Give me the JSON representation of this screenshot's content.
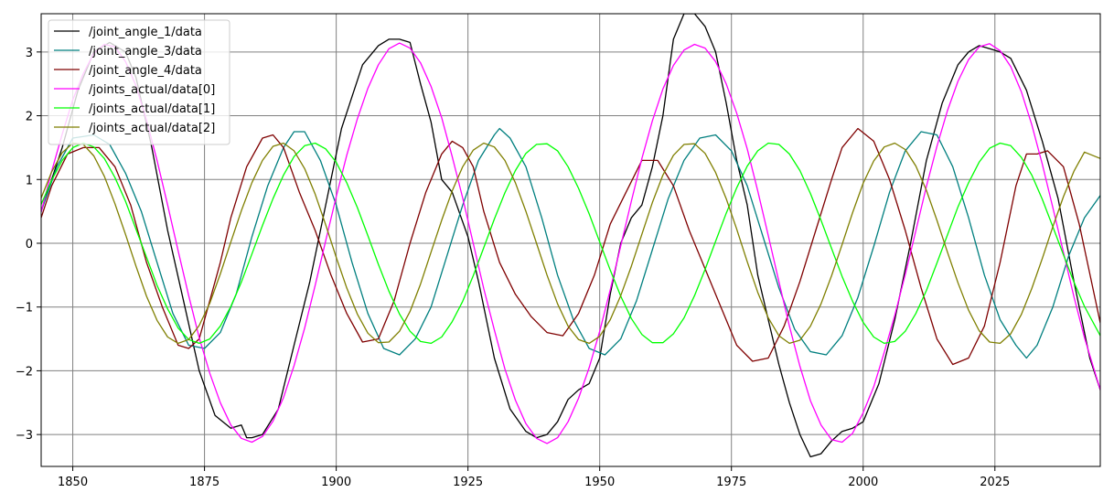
{
  "chart_data": {
    "type": "line",
    "title": "",
    "xlabel": "",
    "ylabel": "",
    "xlim": [
      1844,
      2045
    ],
    "ylim": [
      -3.5,
      3.6
    ],
    "grid": true,
    "legend_position": "top-left",
    "x_ticks": [
      1850,
      1875,
      1900,
      1925,
      1950,
      1975,
      2000,
      2025
    ],
    "x_tick_labels": [
      "1850",
      "1875",
      "1900",
      "1925",
      "1950",
      "1975",
      "2000",
      "2025"
    ],
    "y_ticks": [
      -3,
      -2,
      -1,
      0,
      1,
      2,
      3
    ],
    "y_tick_labels": [
      "−3",
      "−2",
      "−1",
      "0",
      "1",
      "2",
      "3"
    ],
    "series": [
      {
        "name": "/joint_angle_1/data",
        "color": "#000000",
        "x": [
          1844,
          1848,
          1851,
          1854,
          1857,
          1860,
          1862,
          1865,
          1868,
          1871,
          1874,
          1877,
          1880,
          1882,
          1883,
          1884,
          1886,
          1889,
          1892,
          1895,
          1898,
          1901,
          1903,
          1905,
          1908,
          1910,
          1912,
          1914,
          1916,
          1918,
          1920,
          1922,
          1925,
          1927,
          1930,
          1933,
          1936,
          1938,
          1940,
          1942,
          1944,
          1946,
          1948,
          1950,
          1952,
          1954,
          1956,
          1958,
          1960,
          1962,
          1964,
          1966,
          1968,
          1970,
          1972,
          1974,
          1976,
          1978,
          1980,
          1982,
          1984,
          1986,
          1988,
          1990,
          1992,
          1994,
          1996,
          1998,
          2000,
          2003,
          2006,
          2009,
          2012,
          2015,
          2018,
          2020,
          2022,
          2024,
          2026,
          2028,
          2031,
          2034,
          2037,
          2040,
          2043,
          2045
        ],
        "y": [
          0.5,
          1.5,
          2.4,
          3.0,
          3.15,
          3.0,
          2.6,
          1.5,
          0.2,
          -0.9,
          -2.0,
          -2.7,
          -2.9,
          -2.85,
          -3.05,
          -3.05,
          -3.0,
          -2.6,
          -1.6,
          -0.6,
          0.6,
          1.8,
          2.3,
          2.8,
          3.1,
          3.2,
          3.2,
          3.15,
          2.5,
          1.9,
          1.0,
          0.8,
          0.1,
          -0.6,
          -1.8,
          -2.6,
          -2.95,
          -3.05,
          -3.0,
          -2.8,
          -2.45,
          -2.3,
          -2.2,
          -1.8,
          -0.8,
          0.0,
          0.4,
          0.6,
          1.2,
          2.0,
          3.2,
          3.6,
          3.6,
          3.4,
          3.0,
          2.2,
          1.3,
          0.6,
          -0.5,
          -1.2,
          -1.9,
          -2.5,
          -3.0,
          -3.35,
          -3.3,
          -3.1,
          -2.95,
          -2.9,
          -2.8,
          -2.2,
          -1.2,
          0.0,
          1.3,
          2.2,
          2.8,
          3.0,
          3.1,
          3.05,
          3.0,
          2.9,
          2.4,
          1.6,
          0.7,
          -0.6,
          -1.8,
          -2.3
        ]
      },
      {
        "name": "/joint_angle_3/data",
        "color": "#007f7f",
        "x": [
          1844,
          1847,
          1850,
          1854,
          1857,
          1860,
          1863,
          1866,
          1869,
          1872,
          1875,
          1878,
          1881,
          1884,
          1887,
          1890,
          1892,
          1894,
          1897,
          1900,
          1903,
          1906,
          1909,
          1912,
          1915,
          1918,
          1921,
          1924,
          1927,
          1930,
          1931,
          1933,
          1936,
          1939,
          1942,
          1945,
          1948,
          1951,
          1954,
          1957,
          1960,
          1963,
          1966,
          1969,
          1972,
          1975,
          1978,
          1981,
          1984,
          1987,
          1990,
          1993,
          1996,
          1999,
          2002,
          2005,
          2008,
          2011,
          2014,
          2017,
          2020,
          2023,
          2026,
          2029,
          2031,
          2033,
          2036,
          2039,
          2042,
          2045
        ],
        "y": [
          0.5,
          1.2,
          1.65,
          1.7,
          1.55,
          1.1,
          0.5,
          -0.3,
          -1.1,
          -1.6,
          -1.65,
          -1.4,
          -0.8,
          0.1,
          0.9,
          1.5,
          1.75,
          1.75,
          1.3,
          0.6,
          -0.3,
          -1.1,
          -1.65,
          -1.75,
          -1.5,
          -1.0,
          -0.2,
          0.6,
          1.3,
          1.7,
          1.8,
          1.65,
          1.2,
          0.4,
          -0.5,
          -1.2,
          -1.65,
          -1.75,
          -1.5,
          -0.9,
          -0.1,
          0.7,
          1.3,
          1.65,
          1.7,
          1.45,
          0.9,
          0.1,
          -0.7,
          -1.35,
          -1.7,
          -1.75,
          -1.45,
          -0.85,
          -0.05,
          0.8,
          1.45,
          1.75,
          1.7,
          1.2,
          0.4,
          -0.5,
          -1.2,
          -1.6,
          -1.8,
          -1.6,
          -1.0,
          -0.2,
          0.4,
          0.75
        ]
      },
      {
        "name": "/joint_angle_4/data",
        "color": "#7f0000",
        "x": [
          1844,
          1846,
          1849,
          1852,
          1855,
          1858,
          1861,
          1864,
          1867,
          1870,
          1872,
          1874,
          1876,
          1878,
          1880,
          1883,
          1886,
          1888,
          1890,
          1893,
          1896,
          1899,
          1902,
          1905,
          1908,
          1911,
          1914,
          1917,
          1920,
          1922,
          1924,
          1926,
          1928,
          1931,
          1934,
          1937,
          1940,
          1943,
          1946,
          1949,
          1952,
          1955,
          1958,
          1961,
          1964,
          1967,
          1970,
          1973,
          1976,
          1979,
          1982,
          1985,
          1988,
          1991,
          1994,
          1996,
          1999,
          2002,
          2005,
          2008,
          2011,
          2014,
          2017,
          2020,
          2023,
          2026,
          2029,
          2031,
          2033,
          2035,
          2038,
          2041,
          2045
        ],
        "y": [
          0.4,
          0.9,
          1.4,
          1.5,
          1.5,
          1.2,
          0.6,
          -0.3,
          -1.0,
          -1.6,
          -1.65,
          -1.5,
          -0.9,
          -0.3,
          0.4,
          1.2,
          1.65,
          1.7,
          1.5,
          0.8,
          0.2,
          -0.5,
          -1.1,
          -1.55,
          -1.5,
          -0.9,
          0.0,
          0.8,
          1.4,
          1.6,
          1.5,
          1.2,
          0.5,
          -0.3,
          -0.8,
          -1.15,
          -1.4,
          -1.45,
          -1.1,
          -0.5,
          0.3,
          0.8,
          1.3,
          1.3,
          0.9,
          0.2,
          -0.4,
          -1.0,
          -1.6,
          -1.85,
          -1.8,
          -1.3,
          -0.6,
          0.2,
          1.0,
          1.5,
          1.8,
          1.6,
          1.0,
          0.2,
          -0.7,
          -1.5,
          -1.9,
          -1.8,
          -1.3,
          -0.3,
          0.9,
          1.4,
          1.4,
          1.45,
          1.2,
          0.3,
          -1.25
        ]
      },
      {
        "name": "/joints_actual/data[0]",
        "color": "#ff00ff",
        "x": [
          1844,
          1846,
          1848,
          1850,
          1852,
          1854,
          1856,
          1858,
          1860,
          1862,
          1864,
          1866,
          1868,
          1870,
          1872,
          1874,
          1876,
          1878,
          1880,
          1882,
          1884,
          1886,
          1888,
          1890,
          1892,
          1894,
          1896,
          1898,
          1900,
          1902,
          1904,
          1906,
          1908,
          1910,
          1912,
          1914,
          1916,
          1918,
          1920,
          1922,
          1924,
          1926,
          1928,
          1930,
          1932,
          1934,
          1936,
          1938,
          1940,
          1942,
          1944,
          1946,
          1948,
          1950,
          1952,
          1954,
          1956,
          1958,
          1960,
          1962,
          1964,
          1966,
          1968,
          1970,
          1972,
          1974,
          1976,
          1978,
          1980,
          1982,
          1984,
          1986,
          1988,
          1990,
          1992,
          1994,
          1996,
          1998,
          2000,
          2002,
          2004,
          2006,
          2008,
          2010,
          2012,
          2014,
          2016,
          2018,
          2020,
          2022,
          2024,
          2026,
          2028,
          2030,
          2032,
          2034,
          2036,
          2038,
          2040,
          2042,
          2045
        ],
        "y": [
          0.49,
          1.13,
          1.71,
          2.25,
          2.66,
          2.98,
          3.12,
          3.08,
          2.85,
          2.47,
          1.93,
          1.3,
          0.6,
          -0.12,
          -0.82,
          -1.48,
          -2.04,
          -2.5,
          -2.85,
          -3.06,
          -3.12,
          -3.03,
          -2.79,
          -2.42,
          -1.92,
          -1.33,
          -0.66,
          0.04,
          0.73,
          1.38,
          1.95,
          2.43,
          2.8,
          3.05,
          3.14,
          3.06,
          2.83,
          2.46,
          1.97,
          1.36,
          0.71,
          0.0,
          -0.71,
          -1.36,
          -1.97,
          -2.46,
          -2.83,
          -3.06,
          -3.14,
          -3.05,
          -2.8,
          -2.43,
          -1.95,
          -1.38,
          -0.73,
          -0.04,
          0.66,
          1.33,
          1.92,
          2.42,
          2.79,
          3.03,
          3.12,
          3.06,
          2.85,
          2.5,
          2.04,
          1.48,
          0.82,
          0.12,
          -0.6,
          -1.3,
          -1.93,
          -2.47,
          -2.85,
          -3.08,
          -3.12,
          -2.98,
          -2.66,
          -2.25,
          -1.71,
          -1.13,
          -0.49,
          0.2,
          0.89,
          1.52,
          2.08,
          2.54,
          2.88,
          3.08,
          3.13,
          3.02,
          2.77,
          2.38,
          1.86,
          1.24,
          0.56,
          -0.14,
          -0.84,
          -1.48,
          -2.3
        ]
      },
      {
        "name": "/joints_actual/data[1]",
        "color": "#00ff00",
        "x": [
          1844,
          1846,
          1848,
          1850,
          1852,
          1854,
          1856,
          1858,
          1860,
          1862,
          1864,
          1866,
          1868,
          1870,
          1872,
          1874,
          1876,
          1878,
          1880,
          1882,
          1884,
          1886,
          1888,
          1890,
          1892,
          1894,
          1896,
          1898,
          1900,
          1902,
          1904,
          1906,
          1908,
          1910,
          1912,
          1914,
          1916,
          1918,
          1920,
          1922,
          1924,
          1926,
          1928,
          1930,
          1932,
          1934,
          1936,
          1938,
          1940,
          1942,
          1944,
          1946,
          1948,
          1950,
          1952,
          1954,
          1956,
          1958,
          1960,
          1962,
          1964,
          1966,
          1968,
          1970,
          1972,
          1974,
          1976,
          1978,
          1980,
          1982,
          1984,
          1986,
          1988,
          1990,
          1992,
          1994,
          1996,
          1998,
          2000,
          2002,
          2004,
          2006,
          2008,
          2010,
          2012,
          2014,
          2016,
          2018,
          2020,
          2022,
          2024,
          2026,
          2028,
          2030,
          2032,
          2034,
          2036,
          2038,
          2040,
          2042,
          2045
        ],
        "y": [
          0.61,
          0.99,
          1.3,
          1.5,
          1.57,
          1.51,
          1.33,
          1.03,
          0.66,
          0.22,
          -0.22,
          -0.66,
          -1.03,
          -1.33,
          -1.51,
          -1.57,
          -1.5,
          -1.3,
          -0.99,
          -0.61,
          -0.17,
          0.28,
          0.7,
          1.07,
          1.36,
          1.53,
          1.57,
          1.48,
          1.27,
          0.95,
          0.56,
          0.12,
          -0.33,
          -0.75,
          -1.11,
          -1.38,
          -1.54,
          -1.57,
          -1.47,
          -1.23,
          -0.91,
          -0.51,
          -0.07,
          0.38,
          0.79,
          1.14,
          1.41,
          1.55,
          1.56,
          1.45,
          1.2,
          0.86,
          0.46,
          0.02,
          -0.42,
          -0.83,
          -1.18,
          -1.43,
          -1.56,
          -1.56,
          -1.42,
          -1.17,
          -0.82,
          -0.41,
          0.03,
          0.47,
          0.87,
          1.21,
          1.45,
          1.57,
          1.55,
          1.4,
          1.14,
          0.78,
          0.36,
          -0.08,
          -0.52,
          -0.91,
          -1.24,
          -1.47,
          -1.57,
          -1.54,
          -1.38,
          -1.1,
          -0.74,
          -0.31,
          0.13,
          0.57,
          0.95,
          1.27,
          1.49,
          1.57,
          1.53,
          1.35,
          1.07,
          0.69,
          0.26,
          -0.18,
          -0.61,
          -0.99,
          -1.45
        ]
      },
      {
        "name": "/joints_actual/data[2]",
        "color": "#7f7f00",
        "x": [
          1844,
          1846,
          1848,
          1850,
          1852,
          1854,
          1856,
          1858,
          1860,
          1862,
          1864,
          1866,
          1868,
          1870,
          1872,
          1874,
          1876,
          1878,
          1880,
          1882,
          1884,
          1886,
          1888,
          1890,
          1892,
          1894,
          1896,
          1898,
          1900,
          1902,
          1904,
          1906,
          1908,
          1910,
          1912,
          1914,
          1916,
          1918,
          1920,
          1922,
          1924,
          1926,
          1928,
          1930,
          1932,
          1934,
          1936,
          1938,
          1940,
          1942,
          1944,
          1946,
          1948,
          1950,
          1952,
          1954,
          1956,
          1958,
          1960,
          1962,
          1964,
          1966,
          1968,
          1970,
          1972,
          1974,
          1976,
          1978,
          1980,
          1982,
          1984,
          1986,
          1988,
          1990,
          1992,
          1994,
          1996,
          1998,
          2000,
          2002,
          2004,
          2006,
          2008,
          2010,
          2012,
          2014,
          2016,
          2018,
          2020,
          2022,
          2024,
          2026,
          2028,
          2030,
          2032,
          2034,
          2036,
          2038,
          2040,
          2042,
          2045
        ],
        "y": [
          0.71,
          1.12,
          1.42,
          1.57,
          1.55,
          1.37,
          1.05,
          0.62,
          0.14,
          -0.36,
          -0.83,
          -1.21,
          -1.47,
          -1.57,
          -1.51,
          -1.29,
          -0.94,
          -0.48,
          0.02,
          0.51,
          0.95,
          1.3,
          1.52,
          1.57,
          1.45,
          1.17,
          0.77,
          0.29,
          -0.22,
          -0.7,
          -1.11,
          -1.41,
          -1.56,
          -1.55,
          -1.38,
          -1.07,
          -0.64,
          -0.14,
          0.36,
          0.82,
          1.2,
          1.46,
          1.57,
          1.51,
          1.3,
          0.95,
          0.5,
          0.0,
          -0.5,
          -0.95,
          -1.3,
          -1.51,
          -1.57,
          -1.46,
          -1.2,
          -0.82,
          -0.36,
          0.14,
          0.64,
          1.07,
          1.38,
          1.55,
          1.56,
          1.41,
          1.11,
          0.7,
          0.22,
          -0.29,
          -0.77,
          -1.17,
          -1.45,
          -1.57,
          -1.52,
          -1.3,
          -0.95,
          -0.51,
          -0.02,
          0.48,
          0.94,
          1.29,
          1.51,
          1.57,
          1.47,
          1.21,
          0.83,
          0.36,
          -0.14,
          -0.62,
          -1.05,
          -1.37,
          -1.55,
          -1.57,
          -1.42,
          -1.12,
          -0.71,
          -0.24,
          0.26,
          0.73,
          1.13,
          1.43,
          1.33
        ]
      }
    ]
  }
}
